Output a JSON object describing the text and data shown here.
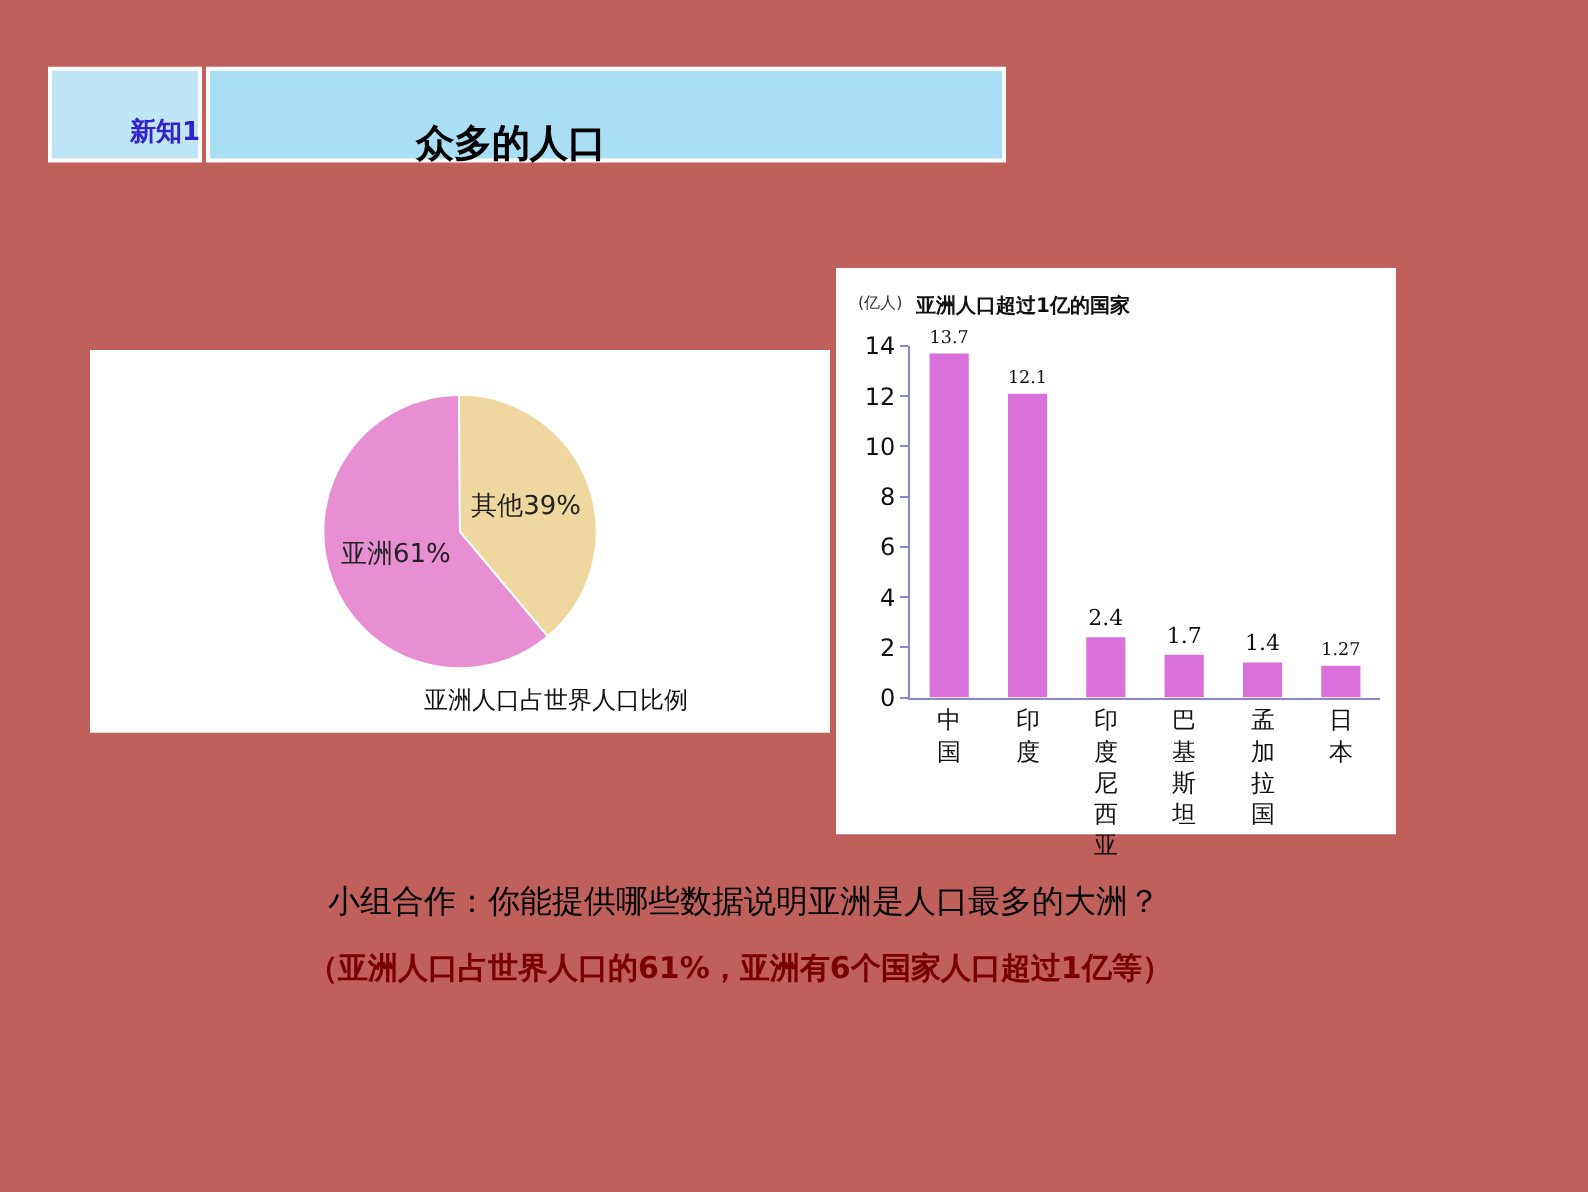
{
  "chart_data": [
    {
      "type": "other",
      "annotations": [
        "新知1",
        "众多的人口"
      ]
    },
    {
      "type": "pie",
      "title": "亚洲人口占世界人口比例",
      "categories": [
        "亚洲61%",
        "其他39%"
      ],
      "values": [
        61,
        39
      ],
      "colors": [
        "#e88fd4",
        "#f0d7a0"
      ]
    },
    {
      "type": "bar",
      "title": "亚洲人口超过1亿的国家",
      "ylabel": "(亿人)",
      "categories": [
        "中国",
        "印度",
        "印度尼西亚",
        "巴基斯坦",
        "孟加拉国",
        "日本"
      ],
      "values": [
        13.7,
        12.1,
        2.4,
        1.7,
        1.4,
        1.27
      ],
      "color": "#d96fd8",
      "ylim": [
        0,
        14
      ],
      "yticks": [
        0,
        2,
        4,
        6,
        8,
        10,
        12,
        14
      ],
      "data_labels": true
    },
    {
      "type": "other",
      "annotations": [
        "小组合作：你能提供哪些数据说明亚洲是人口最多的大洲？",
        "（亚洲人口占世界人口的61%，亚洲有6个国家人口超过1亿等）"
      ]
    }
  ]
}
